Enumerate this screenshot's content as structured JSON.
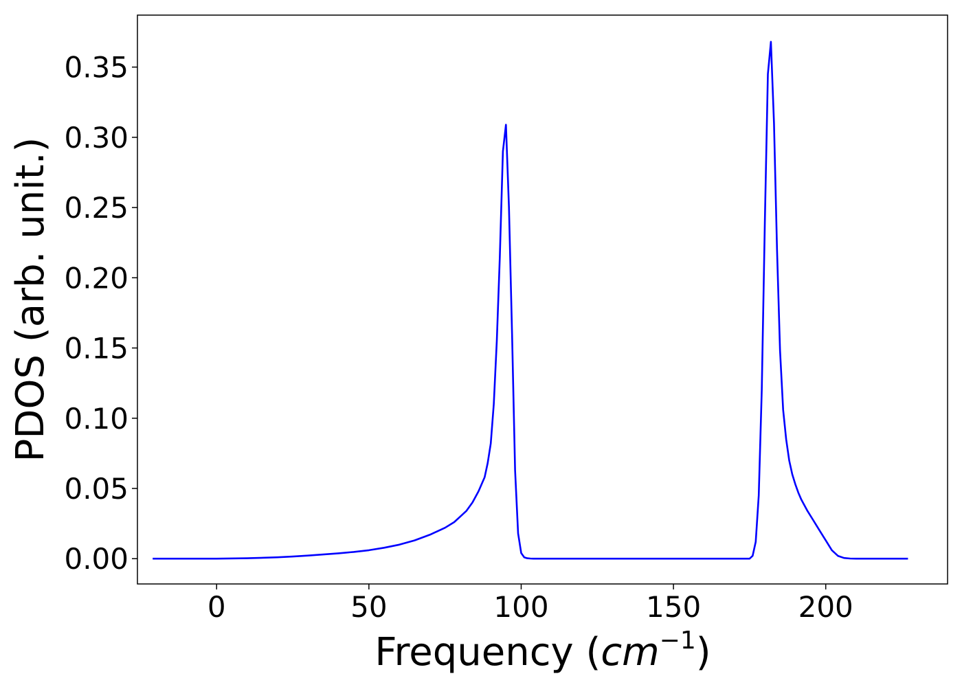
{
  "chart_data": {
    "type": "line",
    "title": "",
    "xlabel": "Frequency (",
    "xlabel_math": "cm",
    "xlabel_exp": "−1",
    "xlabel_close": ")",
    "ylabel": "PDOS (arb. unit.)",
    "xlim": [
      -26,
      240
    ],
    "ylim": [
      -0.018,
      0.387
    ],
    "xticks": [
      0,
      50,
      100,
      150,
      200
    ],
    "xtick_labels": [
      "0",
      "50",
      "100",
      "150",
      "200"
    ],
    "yticks": [
      0,
      0.05,
      0.1,
      0.15,
      0.2,
      0.25,
      0.3,
      0.35
    ],
    "ytick_labels": [
      "0.00",
      "0.05",
      "0.10",
      "0.15",
      "0.20",
      "0.25",
      "0.30",
      "0.35"
    ],
    "grid": false,
    "legend": "none",
    "series": [
      {
        "color": "#0000ff",
        "x": [
          -21,
          0,
          10,
          20,
          25,
          30,
          35,
          40,
          45,
          50,
          55,
          60,
          65,
          70,
          75,
          78,
          80,
          82,
          84,
          86,
          88,
          89,
          90,
          91,
          92,
          93,
          94,
          95,
          96,
          97,
          98,
          99,
          100,
          101,
          102,
          103,
          104,
          110,
          150,
          170,
          175,
          176,
          177,
          178,
          179,
          180,
          181,
          182,
          183,
          184,
          185,
          186,
          187,
          188,
          189,
          190,
          191,
          192,
          194,
          196,
          198,
          200,
          202,
          204,
          206,
          208,
          210,
          212,
          215,
          227
        ],
        "y": [
          0,
          0,
          0.0003,
          0.001,
          0.0015,
          0.0022,
          0.003,
          0.0038,
          0.0048,
          0.006,
          0.0078,
          0.01,
          0.013,
          0.017,
          0.022,
          0.026,
          0.03,
          0.034,
          0.04,
          0.048,
          0.058,
          0.068,
          0.082,
          0.11,
          0.155,
          0.215,
          0.29,
          0.309,
          0.25,
          0.16,
          0.063,
          0.018,
          0.004,
          0.001,
          0.0003,
          0.0001,
          0,
          0,
          0,
          0,
          0,
          0.002,
          0.012,
          0.045,
          0.12,
          0.24,
          0.345,
          0.368,
          0.31,
          0.22,
          0.148,
          0.106,
          0.085,
          0.07,
          0.06,
          0.053,
          0.047,
          0.042,
          0.034,
          0.027,
          0.02,
          0.013,
          0.006,
          0.002,
          0.0005,
          0.0001,
          0,
          0,
          0,
          0
        ]
      }
    ]
  }
}
